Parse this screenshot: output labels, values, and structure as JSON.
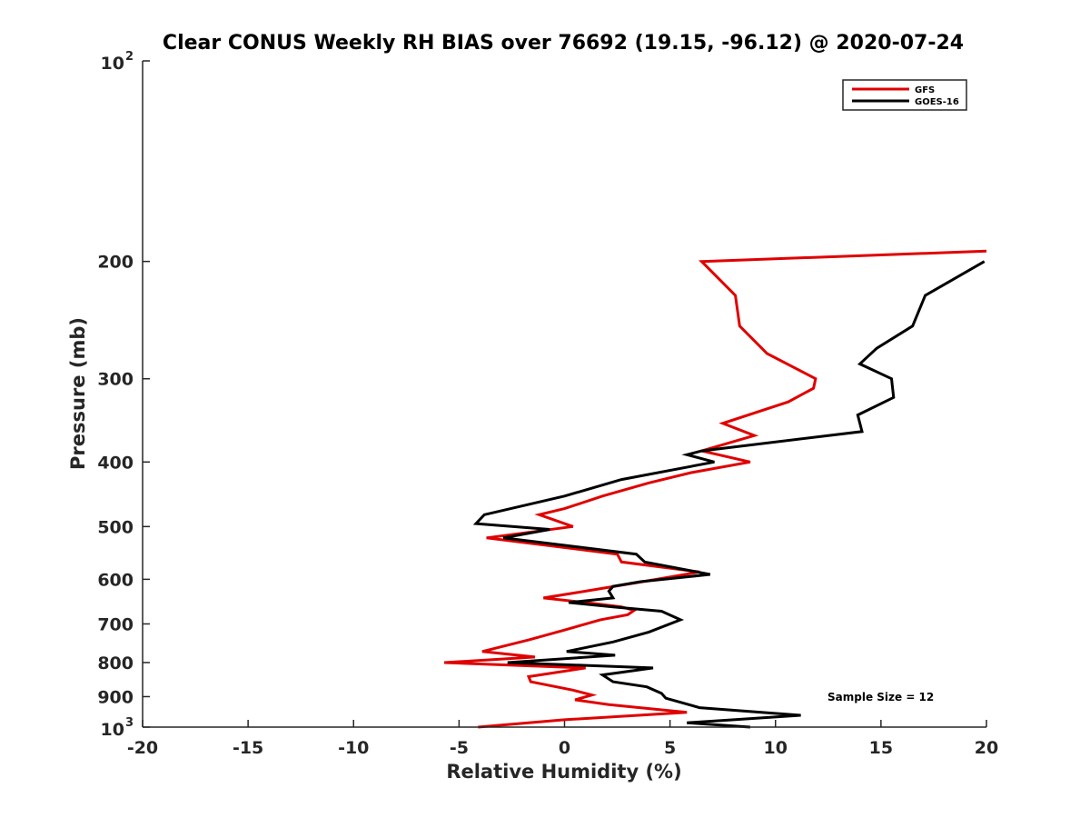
{
  "chart_data": {
    "type": "line",
    "title": "Clear CONUS Weekly RH BIAS over 76692 (19.15, -96.12) @ 2020-07-24",
    "xlabel": "Relative Humidity (%)",
    "ylabel": "Pressure (mb)",
    "xlim": [
      -20,
      20
    ],
    "ylim": [
      100,
      1000
    ],
    "yscale": "log",
    "yreverse": true,
    "x_ticks": [
      -20,
      -15,
      -10,
      -5,
      0,
      5,
      10,
      15,
      20
    ],
    "y_ticks": [
      {
        "value": 100,
        "label": "10",
        "exp": "2"
      },
      {
        "value": 200,
        "label": "200"
      },
      {
        "value": 300,
        "label": "300"
      },
      {
        "value": 400,
        "label": "400"
      },
      {
        "value": 500,
        "label": "500"
      },
      {
        "value": 600,
        "label": "600"
      },
      {
        "value": 700,
        "label": "700"
      },
      {
        "value": 800,
        "label": "800"
      },
      {
        "value": 900,
        "label": "900"
      },
      {
        "value": 1000,
        "label": "10",
        "exp": "3"
      }
    ],
    "legend_position": "top-right",
    "annotation": "Sample Size = 12",
    "series": [
      {
        "name": "GFS",
        "color": "#e00000",
        "points": [
          [
            20.0,
            193
          ],
          [
            6.5,
            200
          ],
          [
            8.1,
            225
          ],
          [
            8.3,
            250
          ],
          [
            9.6,
            275
          ],
          [
            11.9,
            300
          ],
          [
            11.8,
            310
          ],
          [
            10.6,
            325
          ],
          [
            7.5,
            350
          ],
          [
            9.0,
            365
          ],
          [
            6.5,
            385
          ],
          [
            8.8,
            400
          ],
          [
            6.0,
            415
          ],
          [
            4.0,
            430
          ],
          [
            1.8,
            450
          ],
          [
            0.0,
            470
          ],
          [
            -1.2,
            480
          ],
          [
            0.4,
            500
          ],
          [
            -3.7,
            520
          ],
          [
            2.5,
            550
          ],
          [
            2.7,
            565
          ],
          [
            6.4,
            585
          ],
          [
            3.7,
            605
          ],
          [
            1.0,
            625
          ],
          [
            -1.0,
            640
          ],
          [
            1.0,
            650
          ],
          [
            2.7,
            660
          ],
          [
            3.3,
            668
          ],
          [
            3.0,
            678
          ],
          [
            1.7,
            690
          ],
          [
            0.0,
            715
          ],
          [
            -1.7,
            740
          ],
          [
            -3.9,
            770
          ],
          [
            -1.4,
            785
          ],
          [
            -5.7,
            800
          ],
          [
            1.0,
            815
          ],
          [
            -1.7,
            840
          ],
          [
            -1.6,
            855
          ],
          [
            0.4,
            880
          ],
          [
            1.3,
            895
          ],
          [
            0.5,
            910
          ],
          [
            2.1,
            925
          ],
          [
            5.8,
            950
          ],
          [
            0.0,
            975
          ],
          [
            -4.1,
            1000
          ]
        ]
      },
      {
        "name": "GOES-16",
        "color": "#000000",
        "points": [
          [
            19.9,
            200
          ],
          [
            17.1,
            225
          ],
          [
            16.5,
            250
          ],
          [
            14.8,
            270
          ],
          [
            14.0,
            285
          ],
          [
            15.5,
            300
          ],
          [
            15.6,
            320
          ],
          [
            13.9,
            340
          ],
          [
            14.1,
            360
          ],
          [
            6.5,
            385
          ],
          [
            5.8,
            390
          ],
          [
            7.1,
            400
          ],
          [
            2.7,
            425
          ],
          [
            0.0,
            450
          ],
          [
            -3.8,
            480
          ],
          [
            -4.2,
            495
          ],
          [
            -0.7,
            505
          ],
          [
            -2.9,
            520
          ],
          [
            3.4,
            550
          ],
          [
            3.8,
            565
          ],
          [
            6.9,
            590
          ],
          [
            3.6,
            605
          ],
          [
            2.3,
            615
          ],
          [
            2.1,
            625
          ],
          [
            2.3,
            640
          ],
          [
            0.2,
            650
          ],
          [
            2.3,
            660
          ],
          [
            4.6,
            670
          ],
          [
            5.5,
            690
          ],
          [
            4.0,
            720
          ],
          [
            2.3,
            745
          ],
          [
            0.1,
            770
          ],
          [
            2.4,
            780
          ],
          [
            -2.7,
            800
          ],
          [
            4.2,
            815
          ],
          [
            1.8,
            835
          ],
          [
            2.3,
            855
          ],
          [
            3.9,
            870
          ],
          [
            4.6,
            890
          ],
          [
            4.8,
            905
          ],
          [
            6.4,
            935
          ],
          [
            11.2,
            960
          ],
          [
            5.8,
            985
          ],
          [
            8.8,
            1000
          ]
        ]
      }
    ]
  }
}
